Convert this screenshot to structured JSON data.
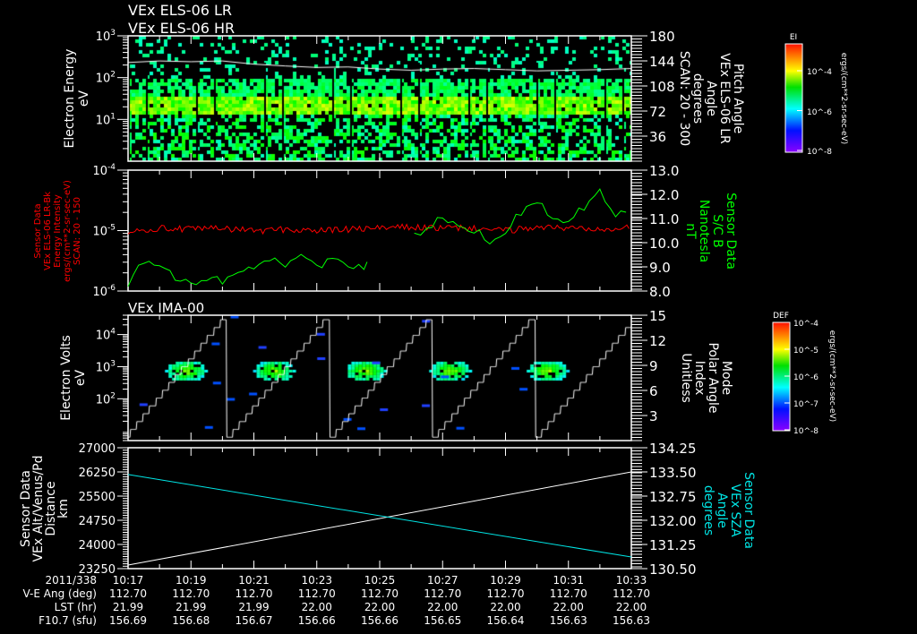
{
  "titles": {
    "top1": "VEx ELS-06 LR",
    "top2": "VEx ELS-06 HR",
    "panel3": "VEx IMA-00"
  },
  "colors": {
    "background": "#000000",
    "axes": "#ffffff",
    "red_series": "#ff0000",
    "green_series": "#00ff00",
    "cyan_series": "#00e5e5"
  },
  "colorbars": [
    {
      "title": "EI",
      "tick_labels": [
        "10^-4",
        "10^-6",
        "10^-8"
      ],
      "unit": "ergs/(cm**2-sr-sec-eV)"
    },
    {
      "title": "DEF",
      "tick_labels": [
        "10^-4",
        "10^-5",
        "10^-6",
        "10^-7",
        "10^-8"
      ],
      "unit": "ergs/(cm**2-sr-sec-eV)"
    }
  ],
  "time_axis": {
    "date_label": "2011/338",
    "ticks": [
      "10:17",
      "10:19",
      "10:21",
      "10:23",
      "10:25",
      "10:27",
      "10:29",
      "10:31",
      "10:33"
    ],
    "rows": [
      {
        "label": "V-E Ang (deg)",
        "values": [
          "112.70",
          "112.70",
          "112.70",
          "112.70",
          "112.70",
          "112.70",
          "112.70",
          "112.70",
          "112.70"
        ]
      },
      {
        "label": "LST (hr)",
        "values": [
          "21.99",
          "21.99",
          "21.99",
          "22.00",
          "22.00",
          "22.00",
          "22.00",
          "22.00",
          "22.00"
        ]
      },
      {
        "label": "F10.7 (sfu)",
        "values": [
          "156.69",
          "156.68",
          "156.67",
          "156.66",
          "156.66",
          "156.65",
          "156.64",
          "156.63",
          "156.63"
        ]
      }
    ]
  },
  "chart_data": [
    {
      "type": "heatmap",
      "title": "VEx ELS-06 LR / HR",
      "ylabel": [
        "Electron Energy",
        "eV"
      ],
      "ylabel_right": [
        "Pitch Angle",
        "VEx ELS-06 LR",
        "Angle",
        "degrees",
        "SCAN: 20 - 300"
      ],
      "yscale": "log",
      "ylim": [
        1,
        1000
      ],
      "yticks": [
        "10^1",
        "10^2",
        "10^3"
      ],
      "ylim_right": [
        0,
        180
      ],
      "yticks_right": [
        "36",
        "72",
        "108",
        "144",
        "180"
      ],
      "xlim": [
        "10:17",
        "10:33"
      ],
      "band_peak_eV": [
        15,
        40
      ],
      "overlay_line": {
        "color": "white",
        "x_min": [
          17,
          18,
          19,
          20,
          21,
          22,
          23,
          24,
          25,
          26,
          27,
          28,
          29,
          30,
          31,
          32,
          33
        ],
        "values_eV": [
          230,
          250,
          240,
          250,
          210,
          190,
          175,
          180,
          160,
          150,
          160,
          165,
          155,
          145,
          150,
          155,
          165
        ]
      }
    },
    {
      "type": "line",
      "ylabel": [
        "Sensor Data",
        "VEx ELS-06 LR-Bk",
        "Energy Intensity",
        "ergs/(cm**2-sr-sec-eV)",
        "SCAN: 20 - 150"
      ],
      "ylabel_right": [
        "Sensor Data",
        "S/C B",
        "Nanotesla",
        "nT"
      ],
      "yscale": "log",
      "ylim": [
        1e-06,
        0.0001
      ],
      "yticks": [
        "10^-6",
        "10^-5",
        "10^-4"
      ],
      "ylim_right": [
        8.0,
        13.0
      ],
      "yticks_right": [
        "8.0",
        "9.0",
        "10.0",
        "11.0",
        "12.0",
        "13.0"
      ],
      "series": [
        {
          "name": "ELS-06 LR-Bk energy intensity",
          "axis": "left",
          "color": "red",
          "x_min": [
            17,
            18,
            19,
            20,
            21,
            22,
            23,
            24,
            25,
            26,
            27,
            28,
            29,
            30,
            31,
            32,
            33
          ],
          "values": [
            1e-05,
            1.1e-05,
            1.05e-05,
            1.1e-05,
            1e-05,
            1.05e-05,
            1e-05,
            1.05e-05,
            1.1e-05,
            1.15e-05,
            1.1e-05,
            1.1e-05,
            1e-05,
            1.15e-05,
            1.1e-05,
            1.1e-05,
            1.15e-05
          ]
        },
        {
          "name": "S/C B",
          "axis": "right",
          "color": "green",
          "x_min": [
            17,
            17.5,
            18,
            18.5,
            19,
            19.5,
            20,
            20.5,
            21,
            21.5,
            22,
            22.5,
            23,
            23.5,
            24,
            24.5,
            24.7,
            26.1,
            26.5,
            27,
            27.5,
            28,
            28.5,
            29,
            29.5,
            30,
            30.5,
            31,
            31.5,
            32,
            32.5,
            33
          ],
          "values": [
            8.3,
            9.2,
            9.0,
            8.6,
            8.3,
            8.5,
            8.4,
            8.9,
            9.0,
            9.4,
            9.1,
            9.5,
            9.0,
            9.4,
            9.0,
            8.9,
            9.2,
            10.3,
            10.6,
            11.0,
            10.7,
            10.5,
            10.1,
            10.5,
            11.3,
            11.8,
            11.0,
            10.8,
            11.5,
            12.3,
            11.0,
            11.5
          ]
        }
      ]
    },
    {
      "type": "heatmap",
      "title": "VEx IMA-00",
      "ylabel": [
        "Electron Volts",
        "eV"
      ],
      "ylabel_right": [
        "Mode",
        "Polar Angle",
        "Index",
        "Unitless"
      ],
      "yscale": "log",
      "ylim": [
        5,
        40000
      ],
      "yticks": [
        "10^2",
        "10^3",
        "10^4"
      ],
      "ylim_right": [
        0,
        15
      ],
      "yticks_right": [
        "3",
        "6",
        "9",
        "12",
        "15"
      ],
      "ion_bursts_min": [
        18.8,
        21.6,
        24.5,
        27.2,
        30.3
      ],
      "ion_burst_energy_eV": 800,
      "polar_angle_scan_period_min": 3.27
    },
    {
      "type": "line",
      "ylabel": [
        "Sensor Data",
        "VEx Alt/Venus/Pd",
        "Distance",
        "km"
      ],
      "ylabel_right": [
        "Sensor Data",
        "VEx SZA",
        "Angle",
        "degrees"
      ],
      "ylim": [
        23250,
        27000
      ],
      "yticks": [
        "23250",
        "24000",
        "24750",
        "25500",
        "26250",
        "27000"
      ],
      "ylim_right": [
        130.5,
        134.25
      ],
      "yticks_right": [
        "130.50",
        "131.25",
        "132.00",
        "132.75",
        "133.50",
        "134.25"
      ],
      "series": [
        {
          "name": "Altitude",
          "axis": "left",
          "color": "white",
          "x_min": [
            17,
            33
          ],
          "values": [
            23360,
            26250
          ]
        },
        {
          "name": "SZA",
          "axis": "right",
          "color": "cyan",
          "x_min": [
            17,
            33
          ],
          "values": [
            133.42,
            130.86
          ]
        }
      ]
    }
  ]
}
